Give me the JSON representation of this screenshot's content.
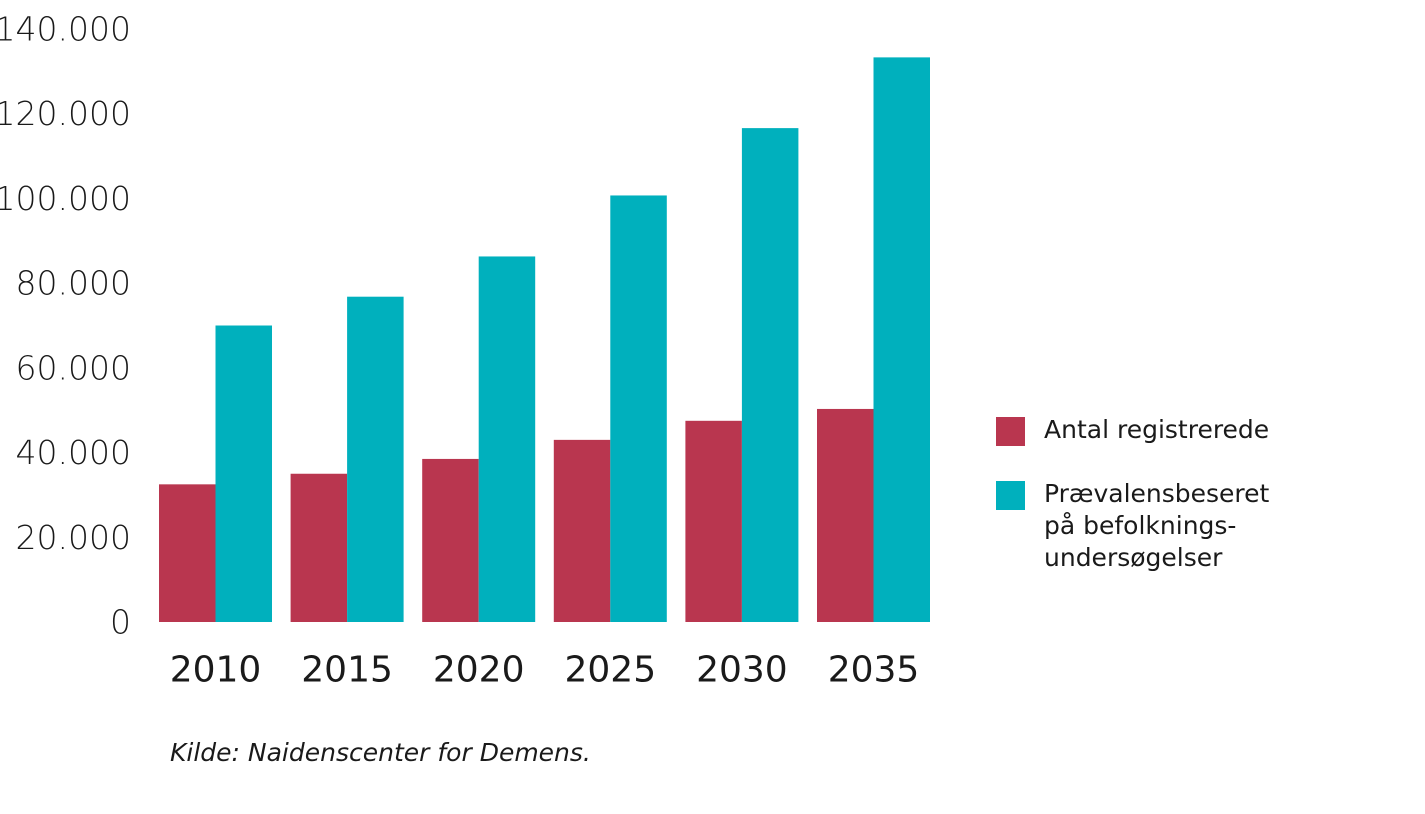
{
  "chart_data": {
    "type": "bar",
    "categories": [
      "2010",
      "2015",
      "2020",
      "2025",
      "2030",
      "2035"
    ],
    "series": [
      {
        "name": "Antal registrerede",
        "color": "#b9364f",
        "values": [
          32500,
          35000,
          38500,
          43000,
          47500,
          50300
        ]
      },
      {
        "name": "Prævalensbeseret\npå befolknings-\nundersøgelser",
        "color": "#00b0bd",
        "values": [
          70000,
          76800,
          86300,
          100700,
          116600,
          133300
        ]
      }
    ],
    "yticks": [
      "0",
      "20.000",
      "40.000",
      "60.000",
      "80.000",
      "100.000",
      "120.000",
      "140.000"
    ],
    "ytick_values": [
      0,
      20000,
      40000,
      60000,
      80000,
      100000,
      120000,
      140000
    ],
    "ylim": [
      0,
      140000
    ],
    "grid": false,
    "legend_position": "right",
    "title": "",
    "xlabel": "",
    "ylabel": ""
  },
  "source_note": "Kilde: Naidenscenter for Demens."
}
